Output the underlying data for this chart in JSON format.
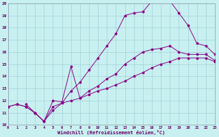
{
  "xlabel": "Windchill (Refroidissement éolien,°C)",
  "bg_color": "#c8f0f0",
  "grid_color": "#a0d0d8",
  "line_color": "#880088",
  "line1_x": [
    0,
    1,
    2,
    3,
    4,
    5,
    6,
    7,
    8,
    9,
    10,
    11,
    12,
    13,
    14,
    15,
    16,
    17,
    18,
    19,
    20,
    21,
    22,
    23
  ],
  "line1_y": [
    11.5,
    11.7,
    11.5,
    11.0,
    10.3,
    11.2,
    11.8,
    12.8,
    13.5,
    14.5,
    15.5,
    16.5,
    17.5,
    19.0,
    19.2,
    19.3,
    20.2,
    20.2,
    20.2,
    19.2,
    18.2,
    16.7,
    16.5,
    15.8
  ],
  "line2_x": [
    2,
    3,
    4,
    5,
    6,
    7,
    8,
    9,
    10,
    11,
    12,
    13,
    14,
    15,
    16,
    17,
    18,
    19,
    20,
    21,
    22,
    23
  ],
  "line2_y": [
    11.7,
    11.0,
    10.3,
    12.0,
    11.9,
    14.8,
    12.2,
    12.8,
    13.2,
    13.8,
    14.2,
    15.0,
    15.5,
    16.0,
    16.2,
    16.3,
    16.5,
    16.0,
    15.8,
    15.8,
    15.8,
    15.3
  ],
  "line3_x": [
    0,
    1,
    2,
    3,
    4,
    5,
    6,
    7,
    8,
    9,
    10,
    11,
    12,
    13,
    14,
    15,
    16,
    17,
    18,
    19,
    20,
    21,
    22,
    23
  ],
  "line3_y": [
    11.5,
    11.7,
    11.5,
    11.0,
    10.3,
    11.5,
    11.8,
    12.0,
    12.2,
    12.5,
    12.8,
    13.0,
    13.3,
    13.6,
    14.0,
    14.3,
    14.7,
    15.0,
    15.2,
    15.5,
    15.5,
    15.5,
    15.5,
    15.2
  ],
  "ylim": [
    10,
    20
  ],
  "xlim": [
    0,
    23
  ],
  "yticks": [
    10,
    11,
    12,
    13,
    14,
    15,
    16,
    17,
    18,
    19,
    20
  ],
  "xticks": [
    0,
    1,
    2,
    3,
    4,
    5,
    6,
    7,
    8,
    9,
    10,
    11,
    12,
    13,
    14,
    15,
    16,
    17,
    18,
    19,
    20,
    21,
    22,
    23
  ]
}
